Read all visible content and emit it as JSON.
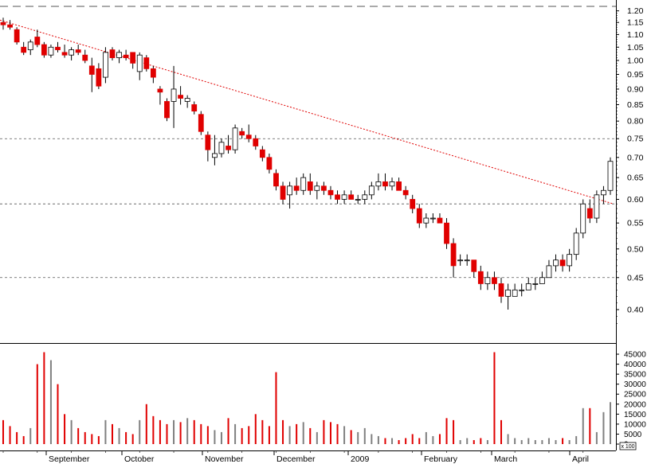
{
  "chart_data": {
    "type": "candlestick",
    "price_scale": "log",
    "price_ylim": [
      0.36,
      1.22
    ],
    "price_ticks": [
      "1.20",
      "1.15",
      "1.10",
      "1.05",
      "1.00",
      "0.95",
      "0.90",
      "0.85",
      "0.80",
      "0.75",
      "0.70",
      "0.65",
      "0.60",
      "0.55",
      "0.50",
      "0.45",
      "0.40"
    ],
    "volume_ylim": [
      0,
      47000
    ],
    "volume_ticks": [
      "45000",
      "40000",
      "35000",
      "30000",
      "25000",
      "20000",
      "15000",
      "10000",
      "5000",
      "0"
    ],
    "volume_unit_label": "x 100",
    "x_tick_labels": [
      "September",
      "October",
      "November",
      "December",
      "2009",
      "February",
      "March",
      "April"
    ],
    "up_color": "#ffffff",
    "down_color": "#e00000",
    "volume_up_color": "#808080",
    "volume_down_color": "#e00000",
    "trendline": {
      "from": 1.16,
      "to": 0.59,
      "style": "dotted",
      "color": "#e00000"
    },
    "horizontal_lines": [
      0.75,
      0.59,
      0.45
    ],
    "top_dashed_level": 1.22,
    "candles": [
      [
        1.15,
        1.17,
        1.12,
        1.14
      ],
      [
        1.14,
        1.16,
        1.12,
        1.13
      ],
      [
        1.12,
        1.13,
        1.06,
        1.07
      ],
      [
        1.05,
        1.07,
        1.02,
        1.03
      ],
      [
        1.04,
        1.08,
        1.02,
        1.07
      ],
      [
        1.09,
        1.12,
        1.05,
        1.06
      ],
      [
        1.06,
        1.07,
        1.01,
        1.02
      ],
      [
        1.02,
        1.06,
        1.01,
        1.05
      ],
      [
        1.05,
        1.07,
        1.03,
        1.04
      ],
      [
        1.03,
        1.06,
        1.01,
        1.02
      ],
      [
        1.02,
        1.05,
        1.0,
        1.04
      ],
      [
        1.04,
        1.06,
        1.02,
        1.03
      ],
      [
        1.02,
        1.04,
        0.99,
        1.0
      ],
      [
        0.98,
        1.01,
        0.89,
        0.95
      ],
      [
        0.97,
        0.99,
        0.9,
        0.91
      ],
      [
        0.94,
        1.05,
        0.92,
        1.03
      ],
      [
        1.04,
        1.05,
        1.0,
        1.01
      ],
      [
        1.01,
        1.04,
        0.99,
        1.03
      ],
      [
        1.02,
        1.04,
        1.0,
        1.01
      ],
      [
        1.03,
        1.03,
        0.97,
        0.99
      ],
      [
        0.96,
        1.03,
        0.93,
        1.02
      ],
      [
        1.01,
        1.02,
        0.96,
        0.97
      ],
      [
        0.97,
        0.98,
        0.92,
        0.94
      ],
      [
        0.9,
        0.91,
        0.85,
        0.89
      ],
      [
        0.86,
        0.87,
        0.8,
        0.81
      ],
      [
        0.86,
        0.98,
        0.78,
        0.9
      ],
      [
        0.88,
        0.91,
        0.85,
        0.87
      ],
      [
        0.86,
        0.88,
        0.84,
        0.87
      ],
      [
        0.85,
        0.86,
        0.82,
        0.83
      ],
      [
        0.82,
        0.83,
        0.76,
        0.77
      ],
      [
        0.76,
        0.77,
        0.69,
        0.72
      ],
      [
        0.7,
        0.76,
        0.68,
        0.71
      ],
      [
        0.71,
        0.75,
        0.7,
        0.74
      ],
      [
        0.73,
        0.76,
        0.71,
        0.72
      ],
      [
        0.72,
        0.79,
        0.71,
        0.78
      ],
      [
        0.77,
        0.78,
        0.75,
        0.76
      ],
      [
        0.76,
        0.79,
        0.74,
        0.75
      ],
      [
        0.75,
        0.76,
        0.72,
        0.73
      ],
      [
        0.72,
        0.73,
        0.69,
        0.7
      ],
      [
        0.7,
        0.71,
        0.66,
        0.67
      ],
      [
        0.66,
        0.67,
        0.62,
        0.63
      ],
      [
        0.63,
        0.64,
        0.59,
        0.6
      ],
      [
        0.61,
        0.64,
        0.58,
        0.63
      ],
      [
        0.63,
        0.65,
        0.61,
        0.62
      ],
      [
        0.62,
        0.66,
        0.61,
        0.65
      ],
      [
        0.64,
        0.66,
        0.61,
        0.62
      ],
      [
        0.62,
        0.64,
        0.6,
        0.63
      ],
      [
        0.63,
        0.64,
        0.61,
        0.62
      ],
      [
        0.62,
        0.63,
        0.6,
        0.61
      ],
      [
        0.61,
        0.62,
        0.59,
        0.6
      ],
      [
        0.6,
        0.62,
        0.59,
        0.61
      ],
      [
        0.61,
        0.62,
        0.6,
        0.6
      ],
      [
        0.6,
        0.61,
        0.59,
        0.6
      ],
      [
        0.6,
        0.62,
        0.59,
        0.61
      ],
      [
        0.61,
        0.64,
        0.6,
        0.63
      ],
      [
        0.63,
        0.66,
        0.62,
        0.64
      ],
      [
        0.64,
        0.66,
        0.62,
        0.63
      ],
      [
        0.63,
        0.65,
        0.62,
        0.64
      ],
      [
        0.64,
        0.65,
        0.62,
        0.62
      ],
      [
        0.62,
        0.63,
        0.6,
        0.61
      ],
      [
        0.6,
        0.61,
        0.57,
        0.58
      ],
      [
        0.58,
        0.59,
        0.54,
        0.55
      ],
      [
        0.55,
        0.57,
        0.54,
        0.56
      ],
      [
        0.56,
        0.57,
        0.55,
        0.56
      ],
      [
        0.56,
        0.57,
        0.55,
        0.55
      ],
      [
        0.55,
        0.56,
        0.5,
        0.51
      ],
      [
        0.51,
        0.52,
        0.45,
        0.47
      ],
      [
        0.48,
        0.49,
        0.47,
        0.48
      ],
      [
        0.48,
        0.49,
        0.47,
        0.48
      ],
      [
        0.48,
        0.48,
        0.45,
        0.46
      ],
      [
        0.46,
        0.47,
        0.43,
        0.44
      ],
      [
        0.44,
        0.46,
        0.43,
        0.45
      ],
      [
        0.45,
        0.46,
        0.43,
        0.44
      ],
      [
        0.44,
        0.45,
        0.41,
        0.42
      ],
      [
        0.42,
        0.44,
        0.4,
        0.43
      ],
      [
        0.42,
        0.44,
        0.42,
        0.43
      ],
      [
        0.43,
        0.44,
        0.42,
        0.43
      ],
      [
        0.43,
        0.45,
        0.43,
        0.44
      ],
      [
        0.44,
        0.45,
        0.43,
        0.44
      ],
      [
        0.44,
        0.46,
        0.44,
        0.45
      ],
      [
        0.45,
        0.48,
        0.45,
        0.47
      ],
      [
        0.47,
        0.49,
        0.46,
        0.48
      ],
      [
        0.48,
        0.49,
        0.46,
        0.47
      ],
      [
        0.47,
        0.5,
        0.46,
        0.49
      ],
      [
        0.49,
        0.54,
        0.48,
        0.53
      ],
      [
        0.53,
        0.6,
        0.52,
        0.59
      ],
      [
        0.58,
        0.6,
        0.55,
        0.56
      ],
      [
        0.56,
        0.62,
        0.55,
        0.61
      ],
      [
        0.61,
        0.63,
        0.59,
        0.62
      ],
      [
        0.62,
        0.7,
        0.61,
        0.69
      ]
    ],
    "volumes": [
      12000,
      9000,
      6000,
      4000,
      8000,
      40000,
      46000,
      42000,
      30000,
      15000,
      12000,
      8000,
      6000,
      5000,
      4000,
      12000,
      10000,
      8000,
      6000,
      5000,
      12000,
      20000,
      14000,
      12000,
      10000,
      12000,
      11000,
      13000,
      12000,
      10000,
      9000,
      7000,
      6000,
      13000,
      10000,
      8000,
      9000,
      15000,
      12000,
      9000,
      36000,
      12000,
      9000,
      10000,
      11000,
      8000,
      6000,
      12000,
      11000,
      10000,
      9000,
      7000,
      6000,
      8000,
      5000,
      4000,
      3000,
      3000,
      2000,
      3000,
      5000,
      3000,
      6000,
      4000,
      5000,
      13000,
      12000,
      2000,
      3000,
      2000,
      3000,
      2000,
      46000,
      12000,
      5000,
      3000,
      2000,
      3000,
      2000,
      2000,
      3000,
      2000,
      3000,
      2000,
      4000,
      18000,
      18000,
      6000,
      16000,
      21000
    ]
  }
}
